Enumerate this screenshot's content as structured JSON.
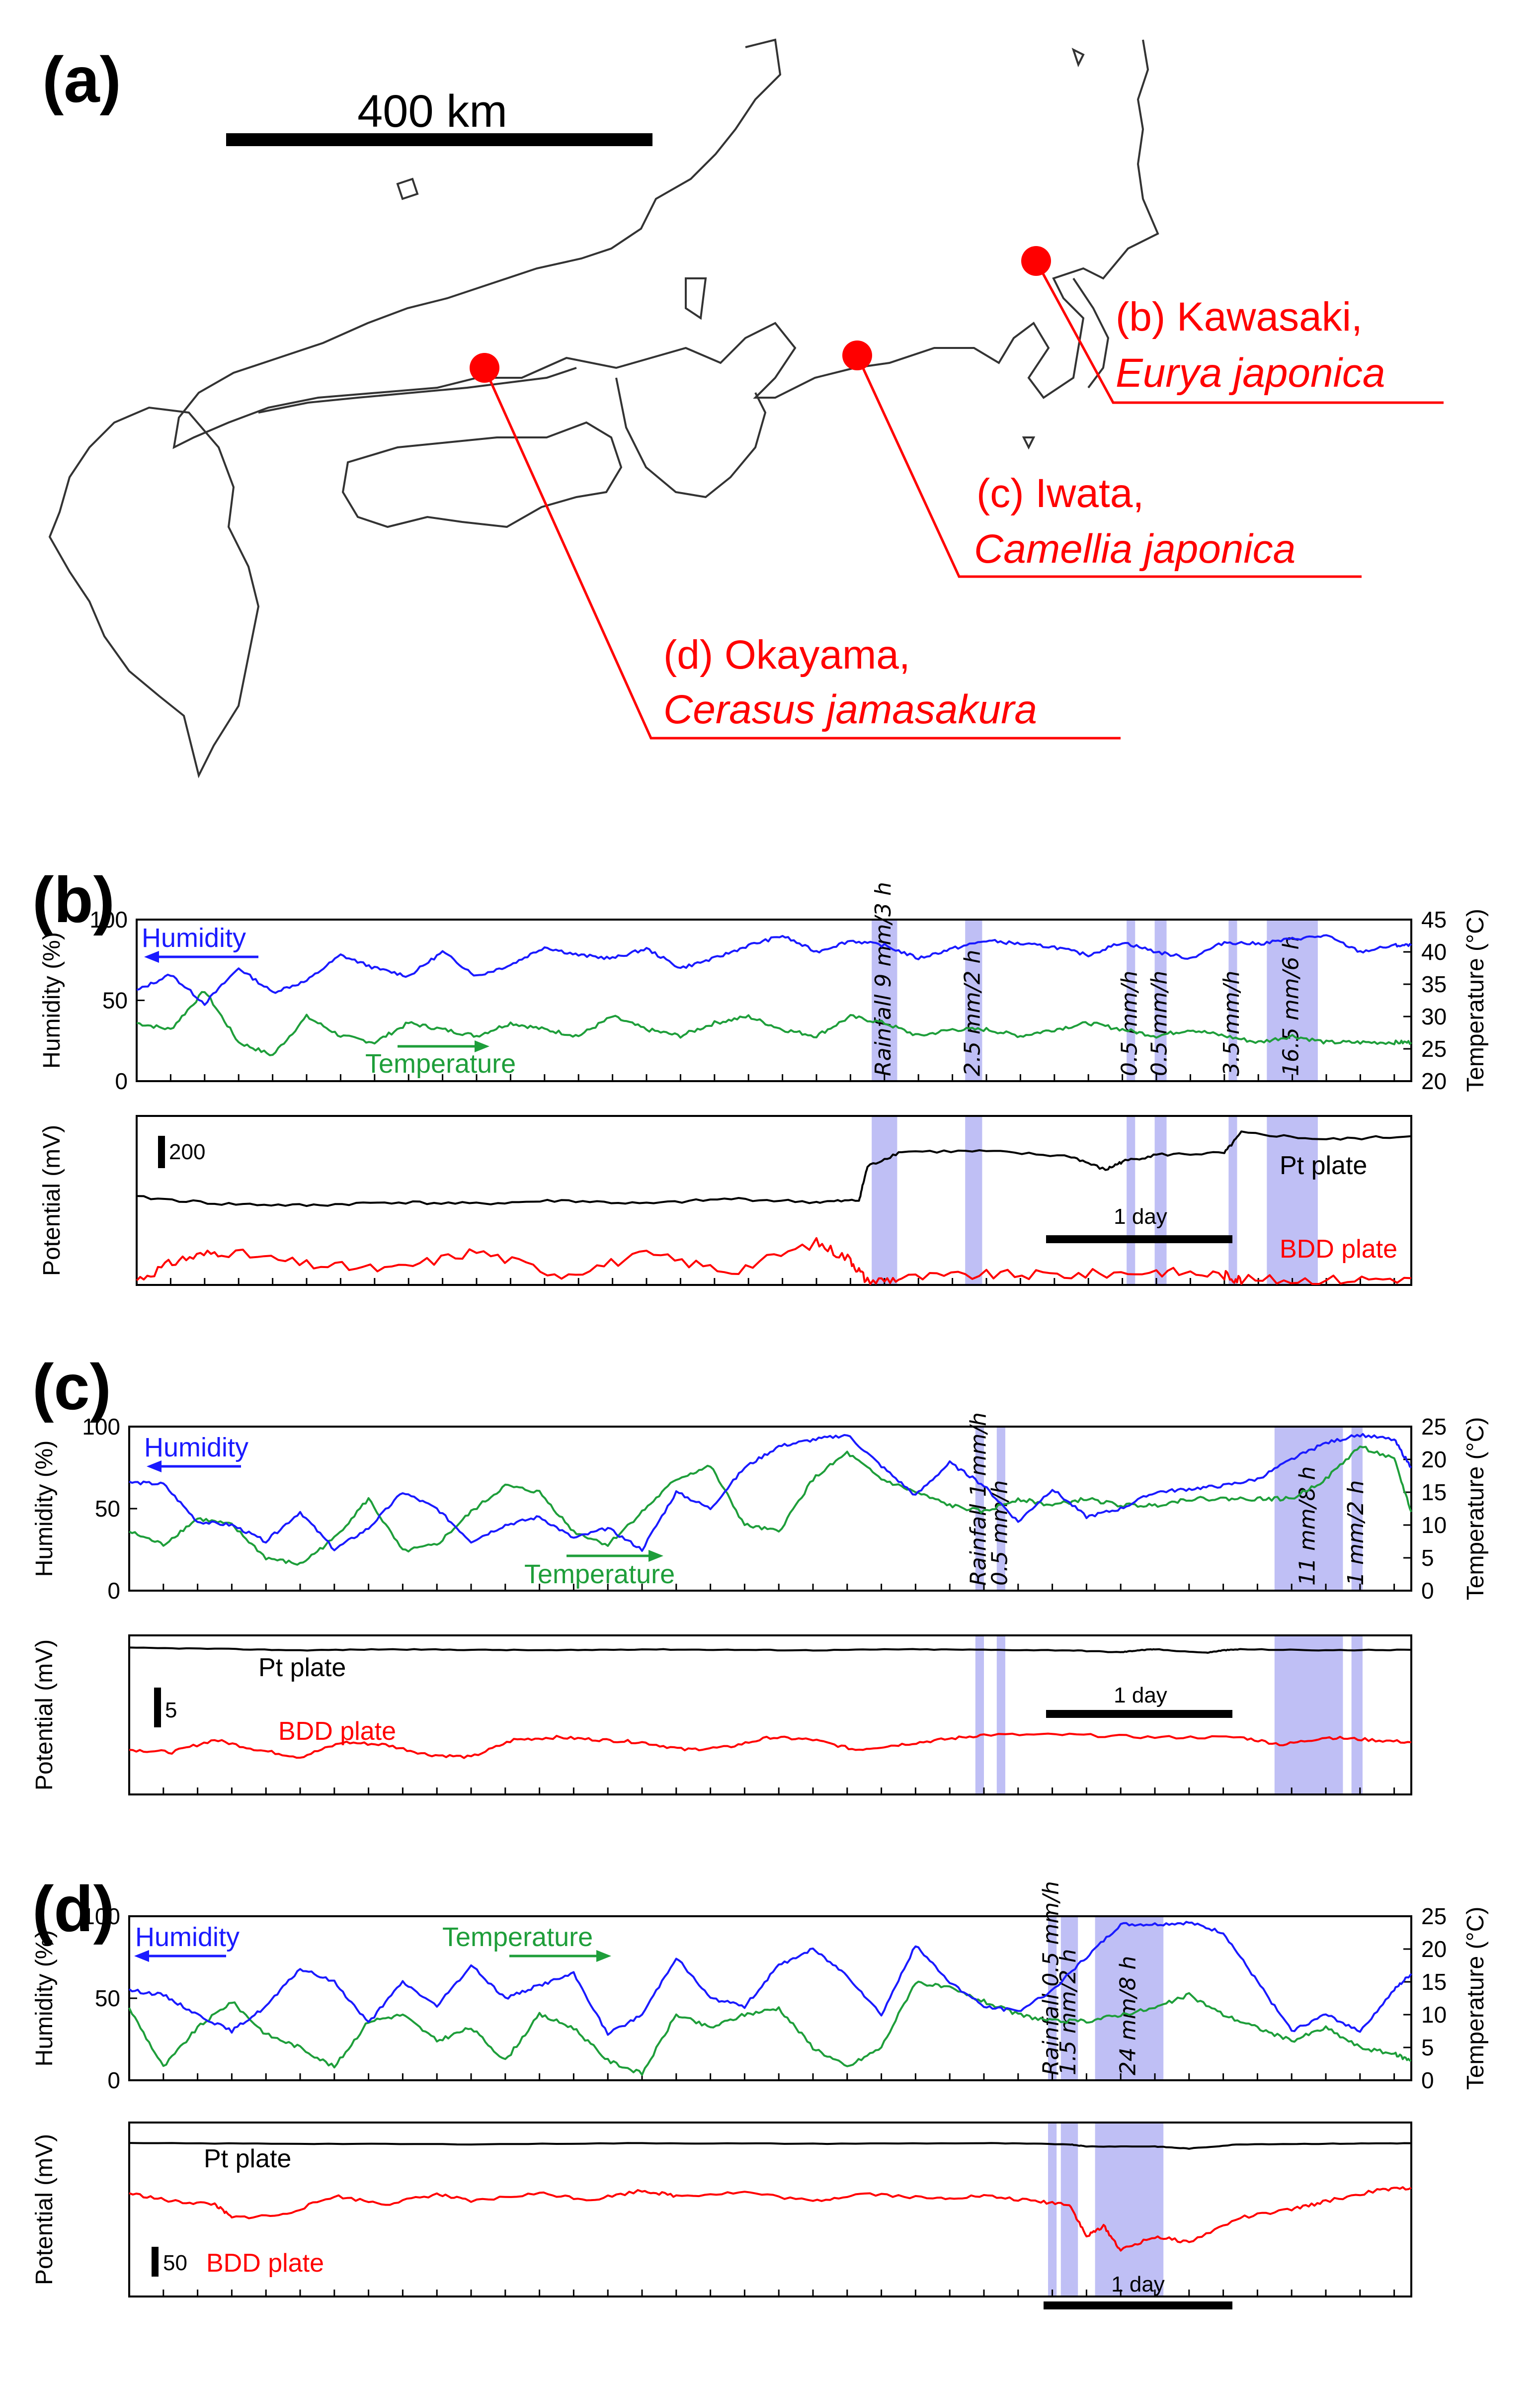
{
  "map": {
    "panel_label": "(a)",
    "scale_label": "400 km",
    "sites": [
      {
        "key": "b",
        "title": "(b) Kawasaki,",
        "species": "Eurya japonica"
      },
      {
        "key": "c",
        "title": "(c) Iwata,",
        "species": "Camellia japonica"
      },
      {
        "key": "d",
        "title": "(d) Okayama,",
        "species": "Cerasus jamasakura"
      }
    ]
  },
  "colors": {
    "humidity": "#1a1aff",
    "temperature": "#1e9e3a",
    "pt": "#000000",
    "bdd": "#ff0000",
    "rain_band": "#a9a9f2",
    "site_marker": "#ff0000",
    "map_line": "#333333"
  },
  "chart_data": [
    {
      "panel_label": "(b)",
      "type": "line",
      "top": {
        "ylabel_left": "Humidity (%)",
        "ylabel_right": "Temperature (°C)",
        "yticks_left": [
          "0",
          "50",
          "100"
        ],
        "yticks_right": [
          "20",
          "25",
          "30",
          "35",
          "40",
          "45"
        ],
        "ylim_left": [
          0,
          100
        ],
        "ylim_right": [
          20,
          45
        ],
        "humidity_label": "Humidity",
        "temperature_label": "Temperature",
        "x_hours": [
          0,
          4,
          8,
          12,
          16,
          20,
          24,
          28,
          32,
          36,
          40,
          44,
          48,
          52,
          56,
          60,
          64,
          68,
          72,
          76,
          80,
          84,
          88,
          92,
          96,
          100,
          104,
          108,
          112,
          116,
          120,
          124,
          128,
          132,
          136,
          140,
          144,
          148,
          150
        ],
        "humidity": [
          56,
          66,
          48,
          70,
          55,
          62,
          78,
          70,
          65,
          80,
          65,
          72,
          83,
          78,
          76,
          82,
          70,
          76,
          84,
          90,
          80,
          87,
          84,
          76,
          82,
          87,
          85,
          83,
          78,
          86,
          80,
          76,
          86,
          85,
          88,
          90,
          80,
          84,
          84
        ],
        "temperature": [
          29,
          28,
          34,
          26,
          24,
          30,
          27,
          26,
          29,
          28,
          27,
          29,
          28,
          27,
          30,
          28,
          27,
          29,
          30,
          28,
          27,
          30,
          29,
          27,
          28,
          28,
          27,
          28,
          29,
          28,
          27,
          28,
          27,
          26,
          27,
          26,
          26,
          26,
          26
        ]
      },
      "bottom": {
        "ylabel": "Potential (mV)",
        "scale_bar_label": "200",
        "scale_bar_mV": 200,
        "day_bar_label": "1 day",
        "series": [
          {
            "name": "Pt plate",
            "x_hours": [
              0,
              10,
              20,
              30,
              40,
              50,
              60,
              70,
              80,
              85,
              86,
              90,
              100,
              110,
              114,
              116,
              120,
              128,
              130,
              140,
              150
            ],
            "values": [
              520,
              480,
              470,
              490,
              480,
              500,
              480,
              510,
              490,
              500,
              700,
              790,
              790,
              760,
              680,
              730,
              770,
              780,
              900,
              860,
              880
            ]
          },
          {
            "name": "BDD plate",
            "x_hours": [
              0,
              5,
              10,
              20,
              30,
              40,
              50,
              60,
              70,
              80,
              84,
              86,
              90,
              100,
              110,
              120,
              128,
              130,
              140,
              150
            ],
            "values": [
              30,
              150,
              200,
              120,
              90,
              200,
              60,
              180,
              80,
              250,
              150,
              20,
              40,
              60,
              60,
              80,
              60,
              30,
              30,
              40
            ]
          }
        ],
        "ylim": [
          0,
          1000
        ]
      },
      "rain_events": [
        {
          "label": "Rainfall 9 mm/3 h",
          "start_h": 86.5,
          "end_h": 89.5
        },
        {
          "label": "2.5 mm/2 h",
          "start_h": 97.5,
          "end_h": 99.5
        },
        {
          "label": "0.5 mm/h",
          "start_h": 116.5,
          "end_h": 117.5
        },
        {
          "label": "0.5 mm/h",
          "start_h": 119.8,
          "end_h": 121.2
        },
        {
          "label": "3.5 mm/h",
          "start_h": 128.5,
          "end_h": 129.5
        },
        {
          "label": "16.5 mm/6 h",
          "start_h": 133,
          "end_h": 139
        }
      ],
      "x_range_hours": [
        0,
        150
      ]
    },
    {
      "panel_label": "(c)",
      "type": "line",
      "top": {
        "ylabel_left": "Humidity (%)",
        "ylabel_right": "Temperature (°C)",
        "yticks_left": [
          "0",
          "50",
          "100"
        ],
        "yticks_right": [
          "0",
          "5",
          "10",
          "15",
          "20",
          "25"
        ],
        "ylim_left": [
          0,
          100
        ],
        "ylim_right": [
          0,
          25
        ],
        "humidity_label": "Humidity",
        "temperature_label": "Temperature",
        "x_hours": [
          0,
          4,
          8,
          12,
          16,
          20,
          24,
          28,
          32,
          36,
          40,
          44,
          48,
          52,
          56,
          60,
          64,
          68,
          72,
          76,
          80,
          84,
          88,
          92,
          96,
          100,
          104,
          108,
          112,
          116,
          120,
          124,
          128,
          132,
          136,
          140,
          144,
          148,
          150
        ],
        "humidity": [
          66,
          65,
          42,
          40,
          30,
          48,
          25,
          38,
          60,
          50,
          30,
          40,
          45,
          32,
          38,
          25,
          60,
          50,
          75,
          88,
          92,
          95,
          76,
          58,
          78,
          64,
          42,
          62,
          45,
          50,
          60,
          62,
          64,
          68,
          80,
          90,
          95,
          92,
          75
        ],
        "temperature": [
          9,
          7,
          11,
          10,
          5,
          4,
          8,
          14,
          6,
          7,
          12,
          16,
          15,
          9,
          7,
          12,
          17,
          19,
          10,
          9,
          17,
          21,
          17,
          15,
          13,
          12,
          14,
          13,
          14,
          13,
          13,
          14,
          14,
          14,
          14,
          17,
          22,
          20,
          12
        ]
      },
      "bottom": {
        "ylabel": "Potential (mV)",
        "scale_bar_label": "5",
        "scale_bar_mV": 5,
        "day_bar_label": "1 day",
        "series": [
          {
            "name": "Pt plate",
            "x_hours": [
              0,
              10,
              20,
              30,
              40,
              50,
              60,
              70,
              80,
              90,
              100,
              110,
              116,
              118,
              120,
              126,
              128,
              130,
              140,
              150
            ],
            "values": [
              29.5,
              29.3,
              29.0,
              29.2,
              29.1,
              29.0,
              29.2,
              29.1,
              29.0,
              29.2,
              29.1,
              29.0,
              28.6,
              29.0,
              29.2,
              28.5,
              29.0,
              29.2,
              29.0,
              29.1
            ]
          },
          {
            "name": "BDD plate",
            "x_hours": [
              0,
              5,
              10,
              15,
              20,
              25,
              30,
              35,
              40,
              45,
              50,
              55,
              60,
              65,
              70,
              75,
              80,
              85,
              90,
              95,
              100,
              110,
              120,
              130,
              135,
              140,
              145,
              150
            ],
            "values": [
              9,
              8.5,
              11,
              9,
              7.5,
              10.5,
              10,
              8,
              7.5,
              11,
              11.5,
              11,
              10.5,
              9,
              9.5,
              11.5,
              11,
              9,
              10,
              11,
              12,
              12,
              11.5,
              11.5,
              10,
              11.5,
              11,
              10.5
            ]
          }
        ],
        "ylim": [
          0,
          32
        ]
      },
      "rain_events": [
        {
          "label": "Rainfall 1 mm/h",
          "start_h": 99,
          "end_h": 100
        },
        {
          "label": "0.5 mm/h",
          "start_h": 101.5,
          "end_h": 102.5
        },
        {
          "label": "11 mm/8 h",
          "start_h": 134,
          "end_h": 142
        },
        {
          "label": "1 mm/2 h",
          "start_h": 143,
          "end_h": 144.3
        }
      ],
      "x_range_hours": [
        0,
        150
      ]
    },
    {
      "panel_label": "(d)",
      "type": "line",
      "top": {
        "ylabel_left": "Humidity (%)",
        "ylabel_right": "Temperature (°C)",
        "yticks_left": [
          "0",
          "50",
          "100"
        ],
        "yticks_right": [
          "0",
          "5",
          "10",
          "15",
          "20",
          "25"
        ],
        "ylim_left": [
          0,
          100
        ],
        "ylim_right": [
          0,
          25
        ],
        "humidity_label": "Humidity",
        "temperature_label": "Temperature",
        "x_hours": [
          0,
          4,
          8,
          12,
          16,
          20,
          24,
          28,
          32,
          36,
          40,
          44,
          48,
          52,
          56,
          60,
          64,
          68,
          72,
          76,
          80,
          84,
          88,
          92,
          96,
          100,
          104,
          108,
          112,
          116,
          120,
          124,
          128,
          132,
          136,
          140,
          144,
          148,
          150
        ],
        "humidity": [
          55,
          52,
          40,
          30,
          45,
          68,
          60,
          35,
          60,
          45,
          70,
          50,
          58,
          65,
          28,
          40,
          75,
          50,
          45,
          70,
          80,
          64,
          40,
          82,
          60,
          45,
          42,
          55,
          75,
          95,
          95,
          96,
          90,
          60,
          30,
          40,
          30,
          55,
          65
        ],
        "temperature": [
          11,
          2,
          8,
          12,
          7,
          5,
          2,
          9,
          10,
          6,
          8,
          3,
          10,
          8,
          3,
          1,
          10,
          8,
          10,
          11,
          5,
          2,
          5,
          15,
          14,
          12,
          10,
          9,
          9,
          10,
          11,
          13,
          10,
          8,
          6,
          8,
          5,
          4,
          3
        ]
      },
      "bottom": {
        "ylabel": "Potential (mV)",
        "scale_bar_label": "50",
        "scale_bar_mV": 50,
        "day_bar_label": "1 day",
        "series": [
          {
            "name": "Pt plate",
            "x_hours": [
              0,
              20,
              40,
              60,
              80,
              100,
              110,
              112,
              120,
              124,
              130,
              140,
              150
            ],
            "values": [
              282,
              281,
              280,
              282,
              281,
              282,
              280,
              276,
              276,
              272,
              280,
              281,
              282
            ]
          },
          {
            "name": "BDD plate",
            "x_hours": [
              0,
              5,
              10,
              12,
              18,
              24,
              30,
              36,
              40,
              48,
              54,
              60,
              64,
              72,
              80,
              86,
              94,
              100,
              106,
              110,
              112,
              114,
              116,
              120,
              124,
              130,
              136,
              140,
              146,
              150
            ],
            "values": [
              190,
              175,
              170,
              145,
              150,
              185,
              170,
              188,
              175,
              190,
              178,
              195,
              185,
              192,
              175,
              190,
              180,
              185,
              175,
              170,
              110,
              130,
              85,
              110,
              100,
              145,
              160,
              175,
              195,
              200
            ]
          }
        ],
        "ylim": [
          0,
          320
        ]
      },
      "rain_events": [
        {
          "label": "Rainfall 0.5 mm/h",
          "start_h": 107.5,
          "end_h": 108.5
        },
        {
          "label": "1.5 mm/2 h",
          "start_h": 109,
          "end_h": 111
        },
        {
          "label": "24 mm/8 h",
          "start_h": 113,
          "end_h": 121
        }
      ],
      "x_range_hours": [
        0,
        150
      ]
    }
  ]
}
